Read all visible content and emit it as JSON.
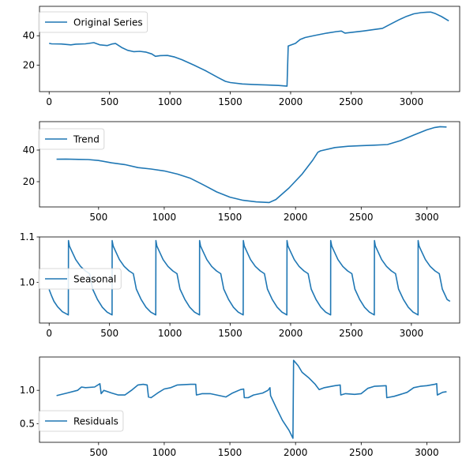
{
  "chart_data": [
    {
      "type": "line",
      "legend": "top-left",
      "xlim": [
        -80,
        3400
      ],
      "ylim": [
        2,
        60
      ],
      "xticks": [
        {
          "v": 0,
          "label": "0"
        },
        {
          "v": 500,
          "label": "500"
        },
        {
          "v": 1000,
          "label": "1000"
        },
        {
          "v": 1500,
          "label": "1500"
        },
        {
          "v": 2000,
          "label": "2000"
        },
        {
          "v": 2500,
          "label": "2500"
        },
        {
          "v": 3000,
          "label": "3000"
        }
      ],
      "yticks": [
        {
          "v": 20,
          "label": "20"
        },
        {
          "v": 40,
          "label": "40"
        }
      ],
      "color": "#1f77b4",
      "series": [
        {
          "name": "Original Series",
          "points": [
            [
              0,
              34.8
            ],
            [
              20,
              34.5
            ],
            [
              100,
              34.4
            ],
            [
              180,
              33.8
            ],
            [
              220,
              34.3
            ],
            [
              300,
              34.5
            ],
            [
              370,
              35.3
            ],
            [
              420,
              33.8
            ],
            [
              480,
              33.3
            ],
            [
              520,
              34.4
            ],
            [
              550,
              34.7
            ],
            [
              600,
              32
            ],
            [
              650,
              30.1
            ],
            [
              700,
              29.2
            ],
            [
              750,
              29.4
            ],
            [
              800,
              28.9
            ],
            [
              850,
              27.6
            ],
            [
              880,
              26.0
            ],
            [
              920,
              26.5
            ],
            [
              980,
              26.6
            ],
            [
              1040,
              25.5
            ],
            [
              1100,
              23.7
            ],
            [
              1200,
              20.0
            ],
            [
              1300,
              16.0
            ],
            [
              1400,
              11.5
            ],
            [
              1460,
              9.0
            ],
            [
              1500,
              8.2
            ],
            [
              1600,
              7.2
            ],
            [
              1700,
              6.8
            ],
            [
              1800,
              6.5
            ],
            [
              1900,
              6.2
            ],
            [
              1970,
              5.7
            ],
            [
              1980,
              33.0
            ],
            [
              2040,
              34.8
            ],
            [
              2080,
              37.5
            ],
            [
              2120,
              38.8
            ],
            [
              2200,
              40.2
            ],
            [
              2300,
              41.8
            ],
            [
              2380,
              42.8
            ],
            [
              2420,
              43.2
            ],
            [
              2450,
              41.8
            ],
            [
              2500,
              42.2
            ],
            [
              2600,
              43.2
            ],
            [
              2700,
              44.3
            ],
            [
              2760,
              45.0
            ],
            [
              2830,
              48.0
            ],
            [
              2900,
              51.0
            ],
            [
              2960,
              53.2
            ],
            [
              3020,
              54.9
            ],
            [
              3080,
              55.7
            ],
            [
              3130,
              56.0
            ],
            [
              3160,
              56.1
            ],
            [
              3200,
              55.0
            ],
            [
              3250,
              53.0
            ],
            [
              3310,
              50.1
            ]
          ]
        }
      ]
    },
    {
      "type": "line",
      "legend": "top-left",
      "xlim": [
        50,
        3250
      ],
      "ylim": [
        4,
        58
      ],
      "xticks": [
        {
          "v": 500,
          "label": "500"
        },
        {
          "v": 1000,
          "label": "1000"
        },
        {
          "v": 1500,
          "label": "1500"
        },
        {
          "v": 2000,
          "label": "2000"
        },
        {
          "v": 2500,
          "label": "2500"
        },
        {
          "v": 3000,
          "label": "3000"
        }
      ],
      "yticks": [
        {
          "v": 20,
          "label": "20"
        },
        {
          "v": 40,
          "label": "40"
        }
      ],
      "color": "#1f77b4",
      "series": [
        {
          "name": "Trend",
          "points": [
            [
              180,
              34.2
            ],
            [
              250,
              34.3
            ],
            [
              350,
              34.1
            ],
            [
              420,
              34.0
            ],
            [
              500,
              33.4
            ],
            [
              600,
              31.9
            ],
            [
              700,
              30.8
            ],
            [
              800,
              28.9
            ],
            [
              900,
              28.0
            ],
            [
              1000,
              26.8
            ],
            [
              1100,
              24.8
            ],
            [
              1200,
              22.1
            ],
            [
              1300,
              17.9
            ],
            [
              1400,
              13.5
            ],
            [
              1500,
              10.2
            ],
            [
              1600,
              8.2
            ],
            [
              1700,
              7.2
            ],
            [
              1800,
              6.8
            ],
            [
              1850,
              8.7
            ],
            [
              1950,
              16.0
            ],
            [
              2050,
              24.8
            ],
            [
              2130,
              33.5
            ],
            [
              2170,
              38.6
            ],
            [
              2190,
              39.5
            ],
            [
              2300,
              41.6
            ],
            [
              2400,
              42.4
            ],
            [
              2500,
              42.8
            ],
            [
              2600,
              43.1
            ],
            [
              2700,
              43.5
            ],
            [
              2800,
              46.0
            ],
            [
              2900,
              49.5
            ],
            [
              3000,
              52.8
            ],
            [
              3060,
              54.3
            ],
            [
              3100,
              54.8
            ],
            [
              3150,
              54.6
            ]
          ]
        }
      ]
    },
    {
      "type": "line",
      "legend": "center-left",
      "xlim": [
        -80,
        3400
      ],
      "ylim": [
        0.91,
        1.1
      ],
      "xticks": [
        {
          "v": 0,
          "label": "0"
        },
        {
          "v": 500,
          "label": "500"
        },
        {
          "v": 1000,
          "label": "1000"
        },
        {
          "v": 1500,
          "label": "1500"
        },
        {
          "v": 2000,
          "label": "2000"
        },
        {
          "v": 2500,
          "label": "2500"
        },
        {
          "v": 3000,
          "label": "3000"
        }
      ],
      "yticks": [
        {
          "v": 1.0,
          "label": "1.0"
        },
        {
          "v": 1.1,
          "label": "1.1"
        }
      ],
      "color": "#1f77b4",
      "series": [
        {
          "name": "Seasonal",
          "period": 362,
          "first_peak": 160,
          "cycle": [
            [
              0,
              1.092
            ],
            [
              8,
              1.08
            ],
            [
              25,
              1.07
            ],
            [
              60,
              1.05
            ],
            [
              100,
              1.035
            ],
            [
              140,
              1.025
            ],
            [
              175,
              1.019
            ],
            [
              200,
              0.985
            ],
            [
              240,
              0.962
            ],
            [
              280,
              0.945
            ],
            [
              320,
              0.934
            ],
            [
              361,
              0.928
            ]
          ],
          "lead_in": [
            [
              0,
              0.984
            ],
            [
              20,
              0.97
            ],
            [
              40,
              0.958
            ],
            [
              70,
              0.946
            ],
            [
              110,
              0.935
            ],
            [
              159,
              0.928
            ]
          ],
          "end_x": 3320,
          "end_y": 0.958
        }
      ]
    },
    {
      "type": "line",
      "legend": "bottom-left",
      "xlim": [
        50,
        3250
      ],
      "ylim": [
        0.22,
        1.5
      ],
      "xticks": [
        {
          "v": 500,
          "label": "500"
        },
        {
          "v": 1000,
          "label": "1000"
        },
        {
          "v": 1500,
          "label": "1500"
        },
        {
          "v": 2000,
          "label": "2000"
        },
        {
          "v": 2500,
          "label": "2500"
        },
        {
          "v": 3000,
          "label": "3000"
        }
      ],
      "yticks": [
        {
          "v": 0.5,
          "label": "0.5"
        },
        {
          "v": 1.0,
          "label": "1.0"
        }
      ],
      "color": "#1f77b4",
      "series": [
        {
          "name": "Residuals",
          "points": [
            [
              180,
              0.92
            ],
            [
              260,
              0.96
            ],
            [
              340,
              1.0
            ],
            [
              370,
              1.05
            ],
            [
              400,
              1.04
            ],
            [
              470,
              1.05
            ],
            [
              510,
              1.1
            ],
            [
              520,
              0.95
            ],
            [
              540,
              1.0
            ],
            [
              600,
              0.96
            ],
            [
              650,
              0.93
            ],
            [
              700,
              0.93
            ],
            [
              750,
              1.0
            ],
            [
              800,
              1.08
            ],
            [
              840,
              1.09
            ],
            [
              870,
              1.08
            ],
            [
              880,
              0.9
            ],
            [
              900,
              0.89
            ],
            [
              950,
              0.96
            ],
            [
              1000,
              1.02
            ],
            [
              1050,
              1.04
            ],
            [
              1100,
              1.08
            ],
            [
              1200,
              1.09
            ],
            [
              1240,
              1.09
            ],
            [
              1245,
              0.93
            ],
            [
              1290,
              0.95
            ],
            [
              1350,
              0.95
            ],
            [
              1400,
              0.93
            ],
            [
              1470,
              0.9
            ],
            [
              1520,
              0.96
            ],
            [
              1580,
              1.01
            ],
            [
              1605,
              1.02
            ],
            [
              1610,
              0.89
            ],
            [
              1640,
              0.89
            ],
            [
              1680,
              0.93
            ],
            [
              1750,
              0.96
            ],
            [
              1790,
              1.0
            ],
            [
              1805,
              1.04
            ],
            [
              1810,
              0.92
            ],
            [
              1850,
              0.75
            ],
            [
              1900,
              0.55
            ],
            [
              1950,
              0.4
            ],
            [
              1980,
              0.28
            ],
            [
              1985,
              1.45
            ],
            [
              2020,
              1.37
            ],
            [
              2050,
              1.27
            ],
            [
              2100,
              1.19
            ],
            [
              2150,
              1.09
            ],
            [
              2180,
              1.01
            ],
            [
              2220,
              1.04
            ],
            [
              2300,
              1.07
            ],
            [
              2340,
              1.08
            ],
            [
              2345,
              0.93
            ],
            [
              2380,
              0.95
            ],
            [
              2450,
              0.94
            ],
            [
              2500,
              0.95
            ],
            [
              2550,
              1.03
            ],
            [
              2600,
              1.06
            ],
            [
              2690,
              1.07
            ],
            [
              2695,
              0.89
            ],
            [
              2750,
              0.91
            ],
            [
              2800,
              0.94
            ],
            [
              2850,
              0.97
            ],
            [
              2900,
              1.04
            ],
            [
              2950,
              1.06
            ],
            [
              3000,
              1.07
            ],
            [
              3060,
              1.09
            ],
            [
              3075,
              1.1
            ],
            [
              3080,
              0.93
            ],
            [
              3120,
              0.97
            ],
            [
              3150,
              0.98
            ]
          ]
        }
      ]
    }
  ]
}
